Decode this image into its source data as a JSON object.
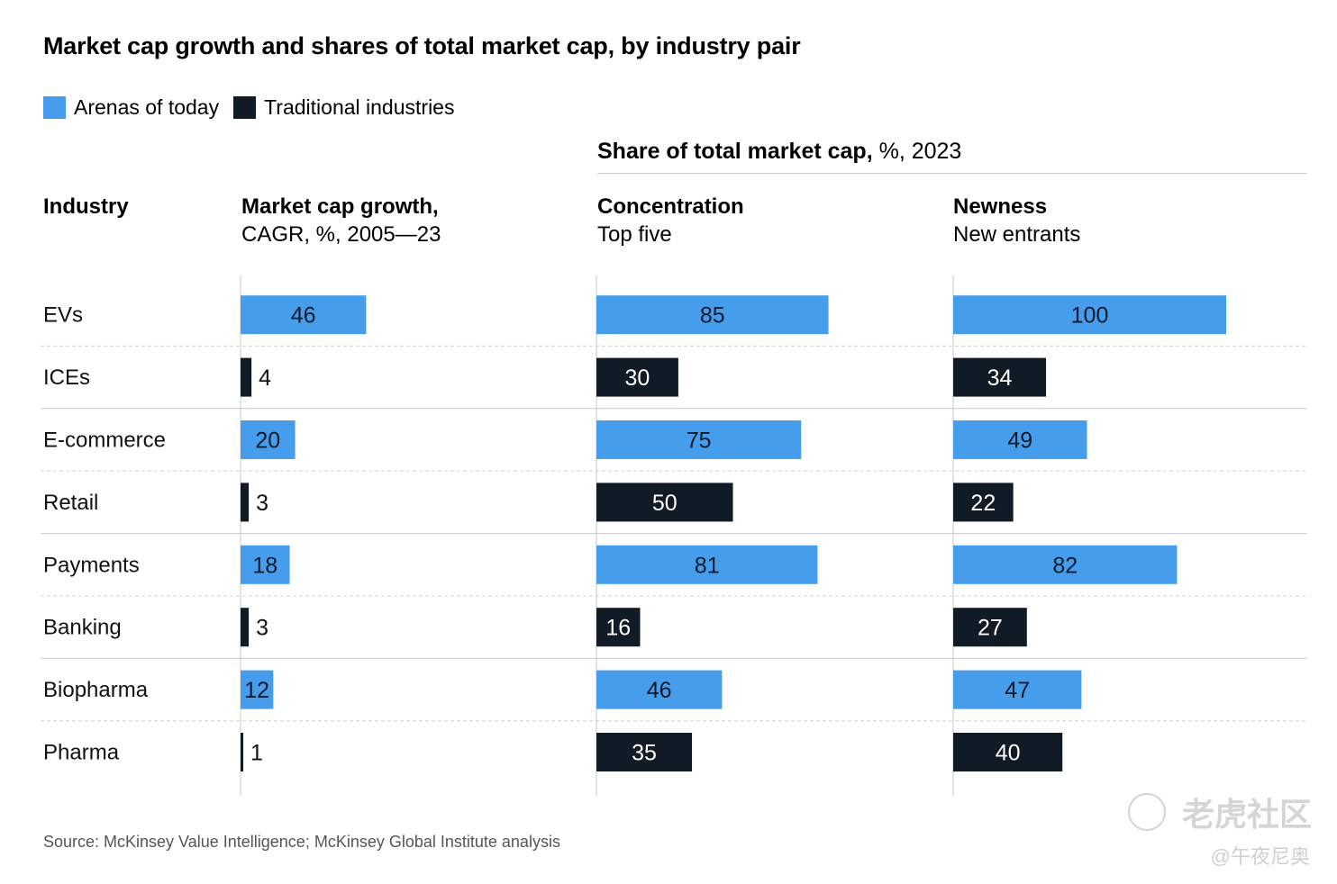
{
  "title": "Market cap growth and shares of total market cap, by industry pair",
  "legend": [
    {
      "label": "Arenas of today",
      "color": "#459DEB"
    },
    {
      "label": "Traditional industries",
      "color": "#111B25"
    }
  ],
  "share_header": {
    "bold": "Share of total market cap,",
    "rest": " %, 2023"
  },
  "columns": {
    "industry": {
      "title": "Industry",
      "subtitle": ""
    },
    "growth": {
      "title": "Market cap growth,",
      "subtitle": "CAGR, %, 2005—23"
    },
    "concentration": {
      "title": "Concentration",
      "subtitle": "Top five"
    },
    "newness": {
      "title": "Newness",
      "subtitle": "New entrants"
    }
  },
  "source": "Source: McKinsey Value Intelligence; McKinsey Global Institute analysis",
  "watermark": {
    "brand": "老虎社区",
    "user": "@午夜尼奥"
  },
  "chart_data": {
    "type": "bar",
    "orientation": "horizontal",
    "title": "Market cap growth and shares of total market cap, by industry pair",
    "categories": [
      "EVs",
      "ICEs",
      "E-commerce",
      "Retail",
      "Payments",
      "Banking",
      "Biopharma",
      "Pharma"
    ],
    "groups": [
      "Arenas of today",
      "Traditional industries",
      "Arenas of today",
      "Traditional industries",
      "Arenas of today",
      "Traditional industries",
      "Arenas of today",
      "Traditional industries"
    ],
    "series": [
      {
        "name": "Market cap growth, CAGR, %, 2005—23",
        "values": [
          46,
          4,
          20,
          3,
          18,
          3,
          12,
          1
        ]
      },
      {
        "name": "Concentration, Top five (share of total market cap, %, 2023)",
        "values": [
          85,
          30,
          75,
          50,
          81,
          16,
          46,
          35
        ]
      },
      {
        "name": "Newness, New entrants (share of total market cap, %, 2023)",
        "values": [
          100,
          34,
          49,
          22,
          82,
          27,
          47,
          40
        ]
      }
    ],
    "colors": {
      "Arenas of today": "#459DEB",
      "Traditional industries": "#111B25"
    },
    "xlim": [
      0,
      100
    ],
    "legend_position": "top-left",
    "grid": false
  }
}
